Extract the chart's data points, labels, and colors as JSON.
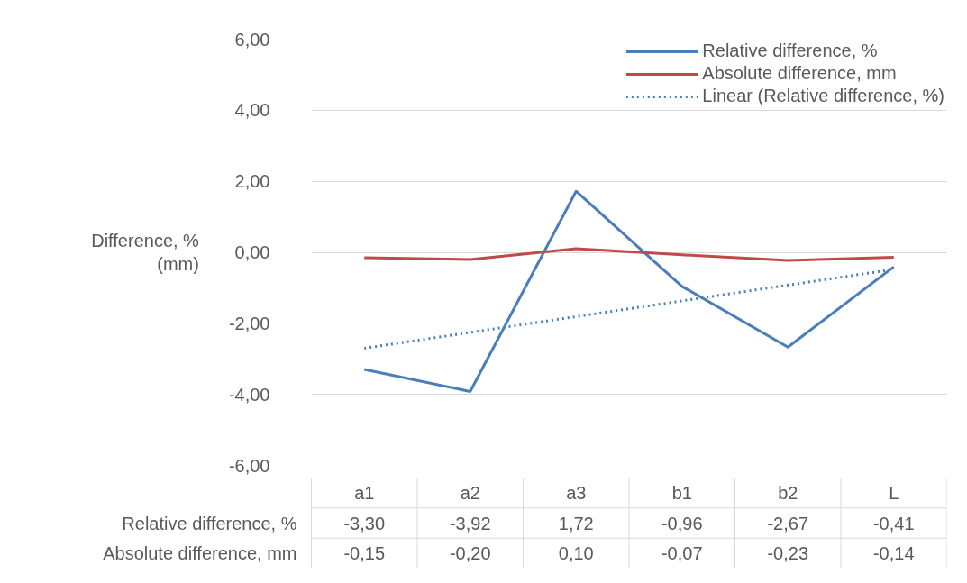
{
  "chart_data": {
    "type": "line",
    "ylabel": "Difference, %\n(mm)",
    "categories": [
      "a1",
      "a2",
      "a3",
      "b1",
      "b2",
      "L"
    ],
    "series": [
      {
        "name": "Relative difference, %",
        "color": "#4a7ebb",
        "values": [
          -3.3,
          -3.92,
          1.72,
          -0.96,
          -2.67,
          -0.41
        ],
        "value_labels": [
          "-3,30",
          "-3,92",
          "1,72",
          "-0,96",
          "-2,67",
          "-0,41"
        ]
      },
      {
        "name": "Absolute difference, mm",
        "color": "#be4b48",
        "values": [
          -0.15,
          -0.2,
          0.1,
          -0.07,
          -0.23,
          -0.14
        ],
        "value_labels": [
          "-0,15",
          "-0,20",
          "0,10",
          "-0,07",
          "-0,23",
          "-0,14"
        ]
      },
      {
        "name": "Linear (Relative difference, %)",
        "color": "#4a7ebb",
        "type": "line",
        "line_style": "dotted",
        "x": [
          "a1",
          "L"
        ],
        "values": [
          -2.7,
          -0.48
        ]
      }
    ],
    "ylim": [
      -6,
      6
    ],
    "yticks": [
      {
        "value": -6,
        "label": "-6,00"
      },
      {
        "value": -4,
        "label": "-4,00"
      },
      {
        "value": -2,
        "label": "-2,00"
      },
      {
        "value": 0,
        "label": "0,00"
      },
      {
        "value": 2,
        "label": "2,00"
      },
      {
        "value": 4,
        "label": "4,00"
      },
      {
        "value": 6,
        "label": "6,00"
      }
    ],
    "grid": "y",
    "legend": "top right",
    "line_style": "solid"
  }
}
